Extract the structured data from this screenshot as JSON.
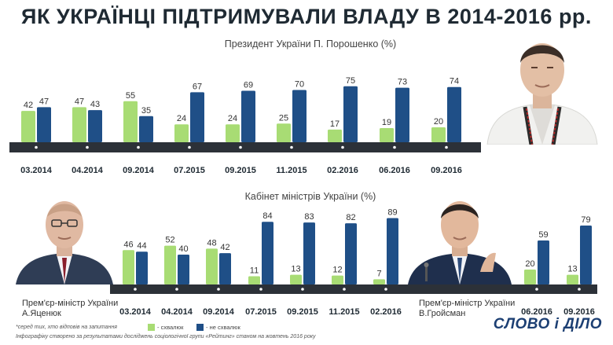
{
  "title": "ЯК УКРАЇНЦІ ПІДТРИМУВАЛИ ВЛАДУ В 2014-2016 рр.",
  "colors": {
    "approve": "#a8dc74",
    "disapprove": "#1f4f87",
    "axis": "#2c3138",
    "text": "#333333"
  },
  "captions": {
    "yatsenyuk_role": "Прем'єр-міністр України",
    "yatsenyuk_name": "А.Яценюк",
    "groysman_role": "Прем'єр-міністр України",
    "groysman_name": "В.Гройсман"
  },
  "legend": {
    "approve": "- схвалюк",
    "disapprove": "- не схвалюк"
  },
  "footnotes": {
    "note1": "*серед тих, хто відповів на запитання",
    "note2": "Інфографіку створено за результатами досліджень соціологічної групи «Рейтинг» станом на жовтень 2016 року"
  },
  "brand": "СЛОВО і ДІЛО",
  "chart_data": [
    {
      "type": "bar",
      "title": "Президент України П. Порошенко (%)",
      "categories": [
        "03.2014",
        "04.2014",
        "09.2014",
        "07.2015",
        "09.2015",
        "11.2015",
        "02.2016",
        "06.2016",
        "09.2016"
      ],
      "series": [
        {
          "name": "схвалюк",
          "values": [
            42,
            47,
            55,
            24,
            24,
            25,
            17,
            19,
            20
          ]
        },
        {
          "name": "не схвалюк",
          "values": [
            47,
            43,
            35,
            67,
            69,
            70,
            75,
            73,
            74
          ]
        }
      ],
      "ylim": [
        0,
        100
      ]
    },
    {
      "type": "bar",
      "title": "Кабінет міністрів України (%)",
      "categories": [
        "03.2014",
        "04.2014",
        "09.2014",
        "07.2015",
        "09.2015",
        "11.2015",
        "02.2016",
        "06.2016",
        "09.2016"
      ],
      "series": [
        {
          "name": "схвалюк",
          "values": [
            46,
            52,
            48,
            11,
            13,
            12,
            7,
            20,
            13
          ]
        },
        {
          "name": "не схвалюк",
          "values": [
            44,
            40,
            42,
            84,
            83,
            82,
            89,
            59,
            79
          ]
        }
      ],
      "ylim": [
        0,
        100
      ]
    }
  ]
}
